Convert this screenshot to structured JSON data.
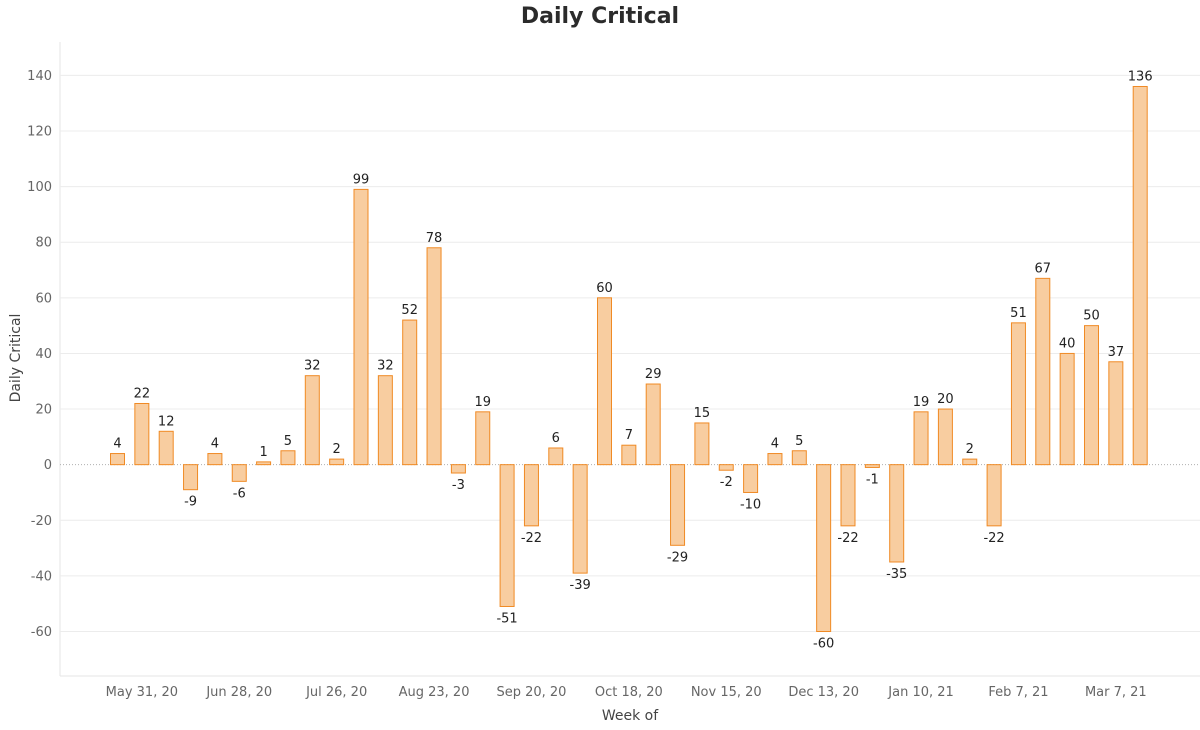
{
  "chart_data": {
    "type": "bar",
    "title": "Daily Critical",
    "xlabel": "Week of",
    "ylabel": "Daily Critical",
    "ylim": [
      -76,
      152
    ],
    "y_ticks": [
      -60,
      -40,
      -20,
      0,
      20,
      40,
      60,
      80,
      100,
      120,
      140
    ],
    "x_tick_labels": [
      {
        "index": 1,
        "label": "May 31, 20"
      },
      {
        "index": 5,
        "label": "Jun 28, 20"
      },
      {
        "index": 9,
        "label": "Jul 26, 20"
      },
      {
        "index": 13,
        "label": "Aug 23, 20"
      },
      {
        "index": 17,
        "label": "Sep 20, 20"
      },
      {
        "index": 21,
        "label": "Oct 18, 20"
      },
      {
        "index": 25,
        "label": "Nov 15, 20"
      },
      {
        "index": 29,
        "label": "Dec 13, 20"
      },
      {
        "index": 33,
        "label": "Jan 10, 21"
      },
      {
        "index": 37,
        "label": "Feb 7, 21"
      },
      {
        "index": 41,
        "label": "Mar 7, 21"
      }
    ],
    "values": [
      4,
      22,
      12,
      -9,
      4,
      -6,
      1,
      5,
      32,
      2,
      99,
      32,
      52,
      78,
      -3,
      19,
      -51,
      -22,
      6,
      -39,
      60,
      7,
      29,
      -29,
      15,
      -2,
      -10,
      4,
      5,
      -60,
      -22,
      -1,
      -35,
      19,
      20,
      2,
      -22,
      51,
      67,
      40,
      50,
      37,
      136
    ],
    "grid": true,
    "colors": {
      "bar_fill": "#f8cda0",
      "bar_stroke": "#f08a24",
      "grid": "#ececec",
      "zero_line": "#b0b0b0"
    }
  }
}
